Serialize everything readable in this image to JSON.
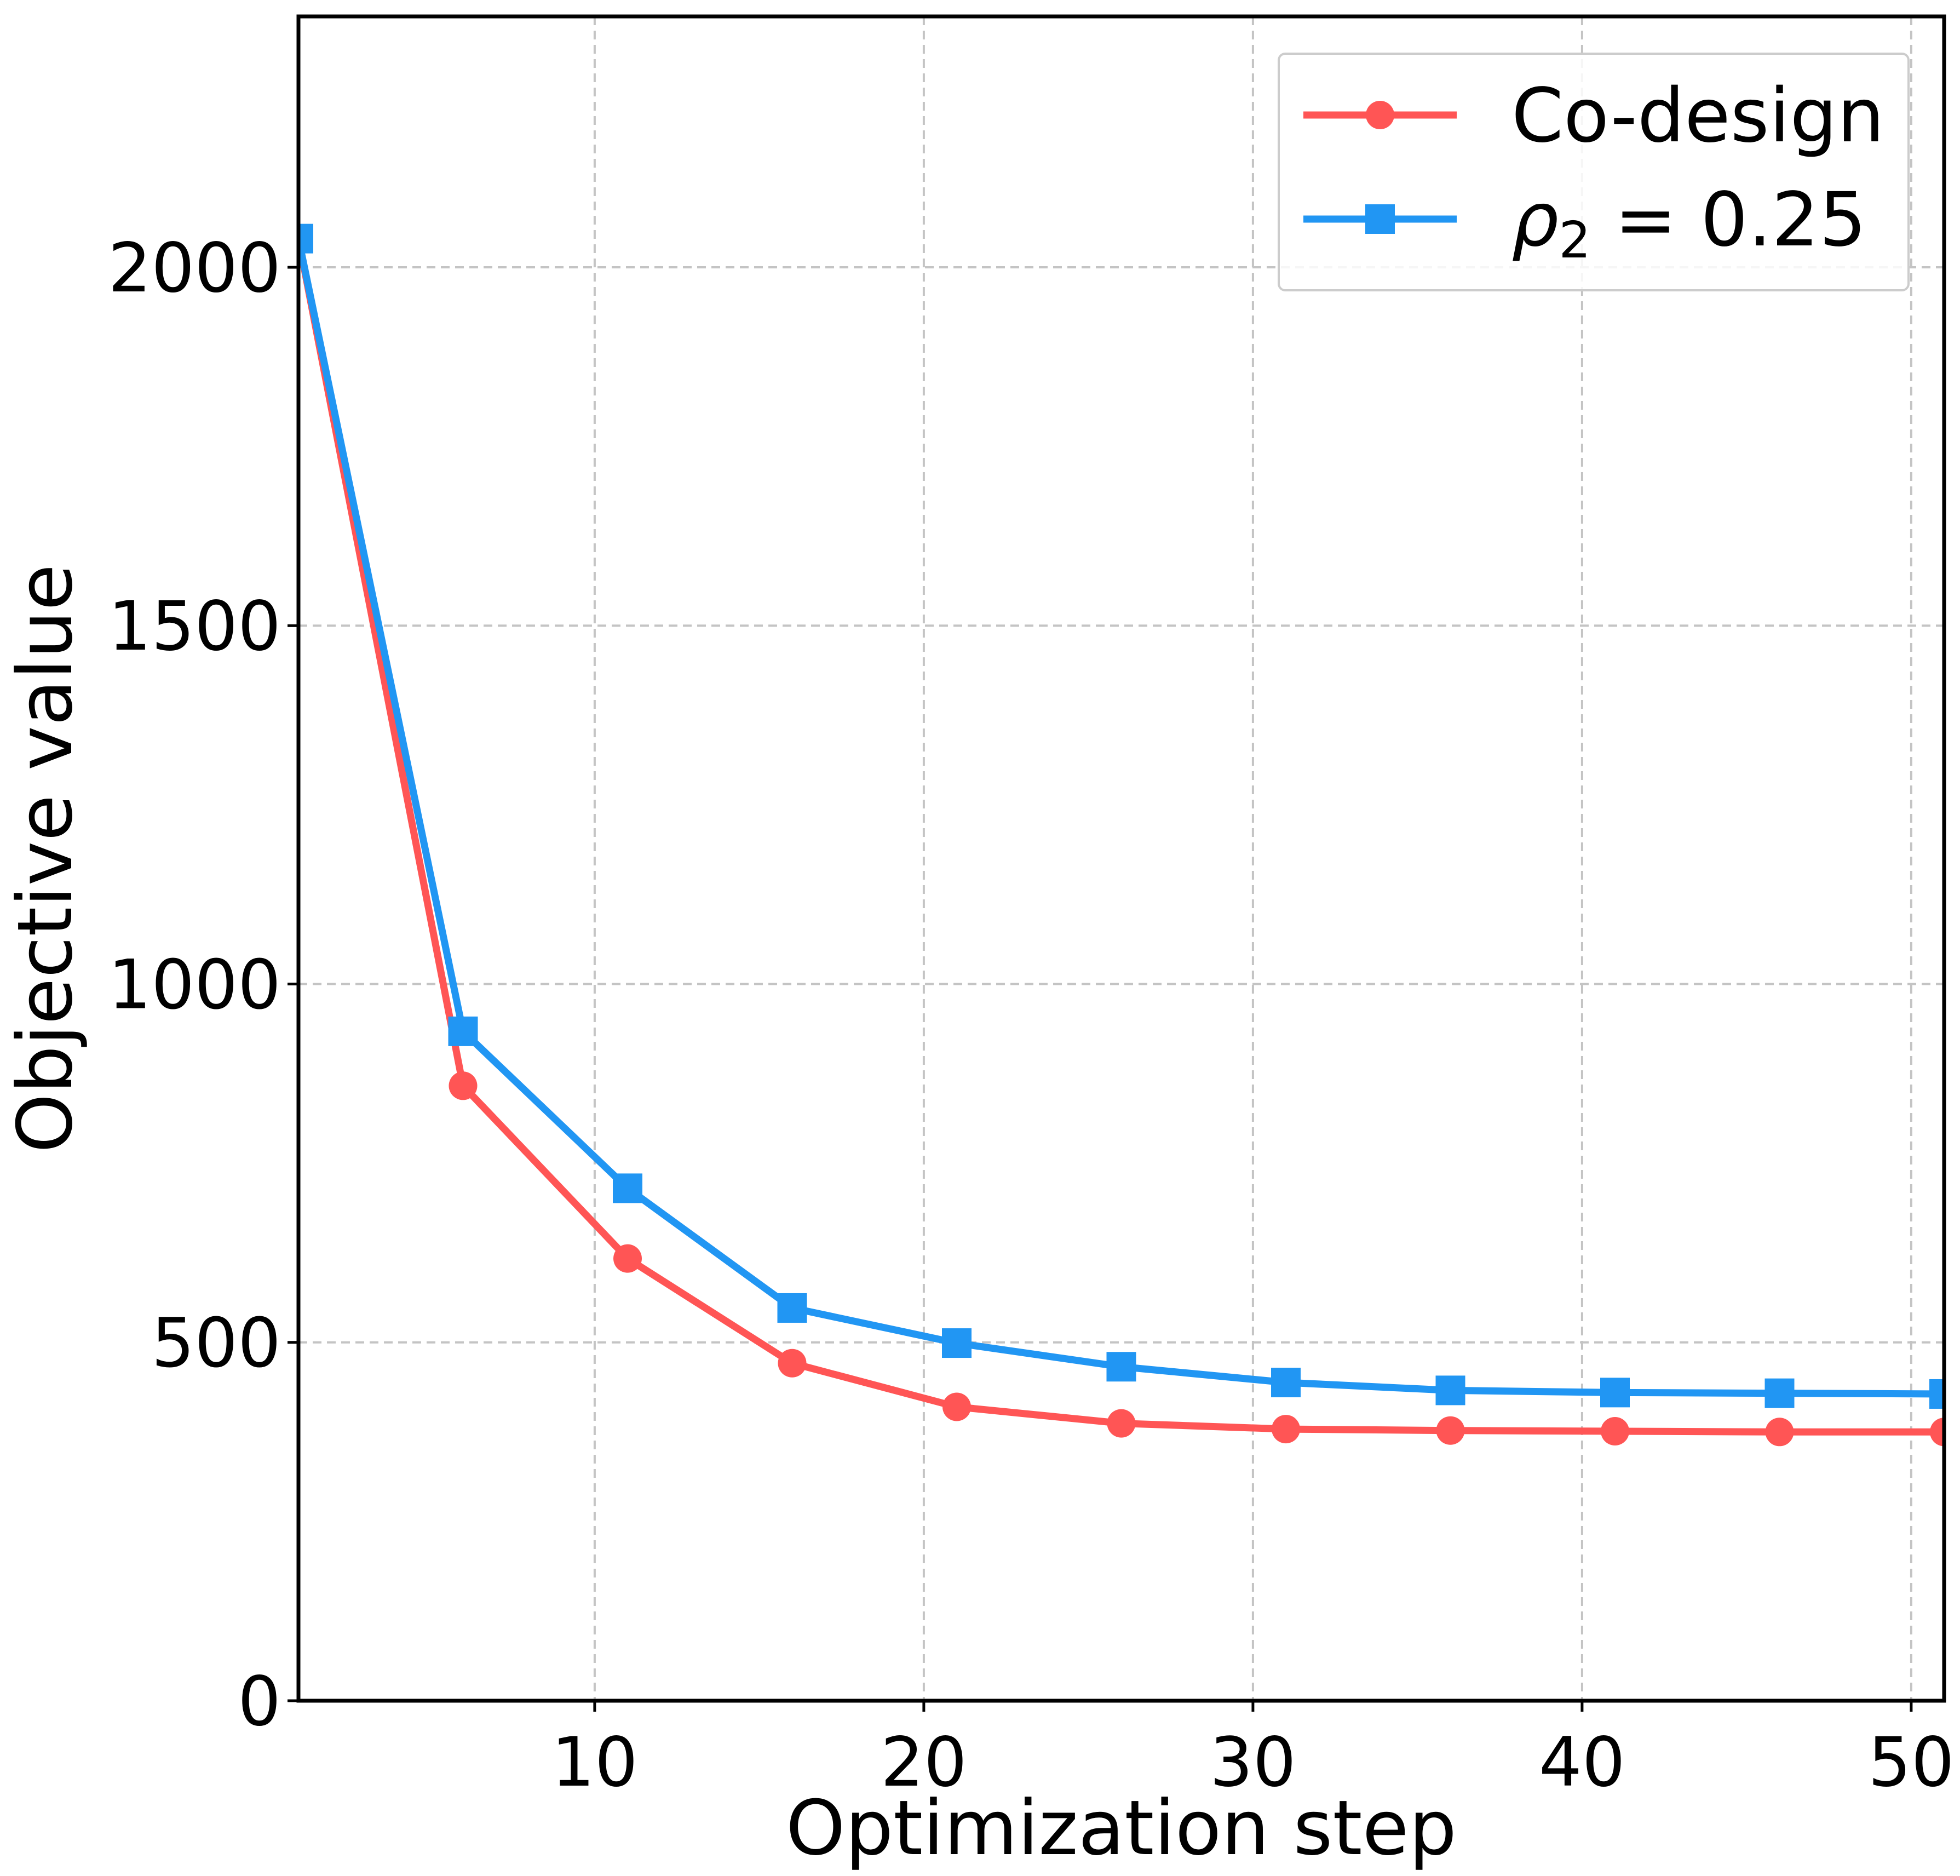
{
  "chart_data": {
    "type": "line",
    "title": "",
    "xlabel": "Optimization step",
    "ylabel": "Objective value",
    "xlim": [
      1,
      51
    ],
    "ylim": [
      0,
      2000
    ],
    "y_axis_top": 2350,
    "xticks": [
      10,
      20,
      30,
      40,
      50
    ],
    "yticks": [
      0,
      500,
      1000,
      1500,
      2000
    ],
    "grid": true,
    "legend_position": "top-right",
    "x": [
      1,
      6,
      11,
      16,
      21,
      26,
      31,
      36,
      41,
      46,
      51
    ],
    "series": [
      {
        "name": "Co-design",
        "color": "#FF5555",
        "marker": "circle",
        "values": [
          2040,
          858,
          617,
          471,
          410,
          387,
          379,
          377,
          376,
          375,
          375
        ]
      },
      {
        "name_parts": {
          "symbol": "ρ",
          "subscript": "2",
          "rest": " = 0.25"
        },
        "color": "#2196F3",
        "marker": "square",
        "values": [
          2040,
          934,
          715,
          548,
          499,
          466,
          444,
          433,
          430,
          429,
          428
        ]
      }
    ]
  }
}
